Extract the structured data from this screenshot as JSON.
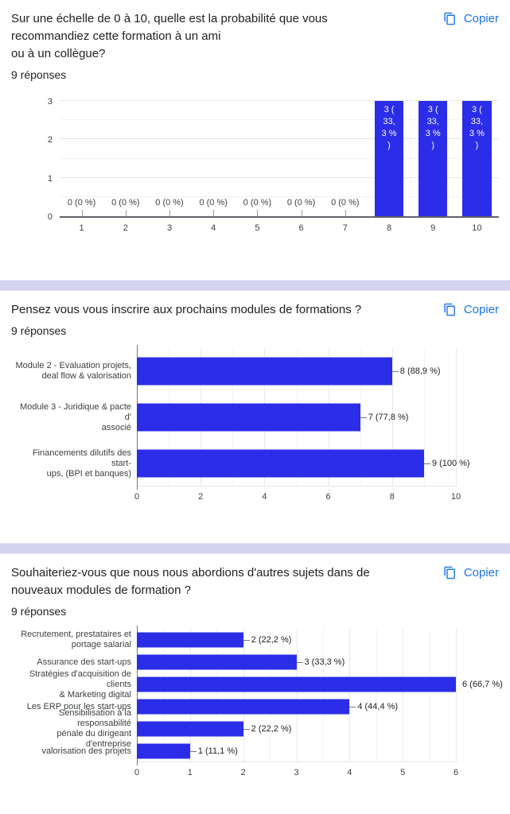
{
  "ui": {
    "copy_label": "Copier",
    "link_color": "#1a73e8",
    "bar_color": "#2b2de8",
    "divider_color": "#d5d3f0"
  },
  "sections": [
    {
      "title": "Sur une échelle de 0 à 10, quelle est la probabilité que vous\nrecommandiez cette formation à un ami\nou à un collègue?",
      "responses": "9 réponses"
    },
    {
      "title": "Pensez vous vous inscrire aux prochains modules de formations ?",
      "responses": "9 réponses"
    },
    {
      "title": "Souhaiteriez-vous que nous nous abordions d'autres sujets dans de\nnouveaux modules de formation ?",
      "responses": "9 réponses"
    }
  ],
  "chart_data": [
    {
      "type": "bar",
      "orientation": "vertical",
      "title": "Sur une échelle de 0 à 10, quelle est la probabilité que vous recommandiez cette formation à un ami ou à un collègue?",
      "categories": [
        "1",
        "2",
        "3",
        "4",
        "5",
        "6",
        "7",
        "8",
        "9",
        "10"
      ],
      "values": [
        0,
        0,
        0,
        0,
        0,
        0,
        0,
        3,
        3,
        3
      ],
      "point_labels": [
        "0 (0 %)",
        "0 (0 %)",
        "0 (0 %)",
        "0 (0 %)",
        "0 (0 %)",
        "0 (0 %)",
        "0 (0 %)",
        "3 (33,3 %)",
        "3 (33,3 %)",
        "3 (33,3 %)"
      ],
      "bar_label_lines": [
        "3 (",
        "33,",
        "3 %",
        ")"
      ],
      "ylim": [
        0,
        3
      ],
      "yticks": [
        0,
        1,
        2,
        3
      ],
      "grid": true,
      "legend": "none"
    },
    {
      "type": "bar",
      "orientation": "horizontal",
      "title": "Pensez vous vous inscrire aux prochains modules de formations ?",
      "categories": [
        "Module 2 - Evaluation projets, deal flow & valorisation",
        "Module 3 - Juridique & pacte d' associé",
        "Financements dilutifs des start-ups, (BPI et banques)"
      ],
      "category_lines": [
        [
          "Module 2 - Evaluation projets,",
          "deal flow & valorisation"
        ],
        [
          "Module 3 - Juridique & pacte d'",
          "associé"
        ],
        [
          "Financements dilutifs des start-",
          "ups, (BPI et banques)"
        ]
      ],
      "values": [
        8,
        7,
        9
      ],
      "point_labels": [
        "8 (88,9 %)",
        "7 (77,8 %)",
        "9 (100 %)"
      ],
      "xlim": [
        0,
        10
      ],
      "xticks": [
        0,
        2,
        4,
        6,
        8,
        10
      ],
      "minor_unit": 1,
      "grid": true,
      "legend": "none"
    },
    {
      "type": "bar",
      "orientation": "horizontal",
      "title": "Souhaiteriez-vous que nous nous abordions d'autres sujets dans de nouveaux modules de formation ?",
      "categories": [
        "Recrutement, prestataires et portage salarial",
        "Assurance des start-ups",
        "Stratégies d'acquisition de clients & Marketing digital",
        "Les ERP pour les start-ups",
        "Sensibilisation à la responsabilité pénale du dirigeant d'entreprise",
        "valorisation des projets"
      ],
      "category_lines": [
        [
          "Recrutement, prestataires et",
          "portage salarial"
        ],
        [
          "Assurance des start-ups"
        ],
        [
          "Stratégies d'acquisition de clients",
          "& Marketing digital"
        ],
        [
          "Les ERP pour les start-ups"
        ],
        [
          "Sensibilisation à la responsabilité",
          "pénale du dirigeant d'entreprise"
        ],
        [
          "valorisation des projets"
        ]
      ],
      "values": [
        2,
        3,
        6,
        4,
        2,
        1
      ],
      "point_labels": [
        "2 (22,2 %)",
        "3 (33,3 %)",
        "6 (66,7 %)",
        "4 (44,4 %)",
        "2 (22,2 %)",
        "1 (11,1 %)"
      ],
      "xlim": [
        0,
        6
      ],
      "xticks": [
        0,
        1,
        2,
        3,
        4,
        5,
        6
      ],
      "minor_unit": 0.5,
      "grid": true,
      "legend": "none"
    }
  ]
}
